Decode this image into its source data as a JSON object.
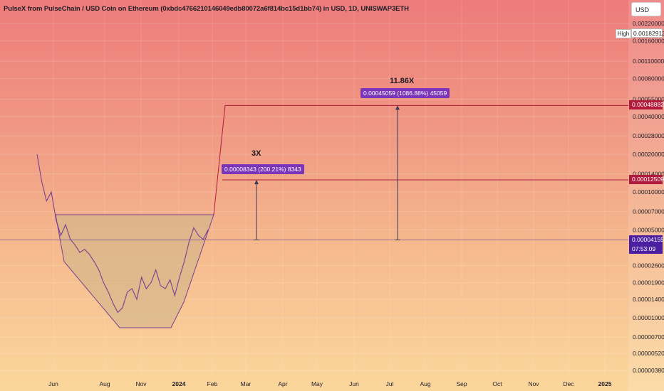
{
  "title": "PulseX from PulseChain / USD Coin on Ethereum (0xbdc4766210146049edb80072a6f814bc15d1bb74) in USD, 1D, UNISWAP3ETH",
  "currency": "USD",
  "high_label": "High",
  "high_value": "0.00182912",
  "colors": {
    "line": "#7a3f8f",
    "level": "#b01a3c",
    "current": "#4a1fa0",
    "box": "#7a35b8",
    "fill": "#d2b68a"
  },
  "chart_data": {
    "type": "line",
    "scale": "log",
    "x_ticks": [
      "Jun",
      "Aug",
      "Nov",
      "2024",
      "Feb",
      "Mar",
      "Apr",
      "May",
      "Jun",
      "Jul",
      "Aug",
      "Sep",
      "Oct",
      "Nov",
      "Dec",
      "2025"
    ],
    "y_ticks": [
      "0.00220000",
      "0.00160000",
      "0.00110000",
      "0.00080000",
      "0.00055000",
      "0.00040000",
      "0.00028000",
      "0.00020000",
      "0.00014000",
      "0.00010000",
      "0.00007000",
      "0.00005000",
      "0.00002600",
      "0.00001900",
      "0.00001400",
      "0.00001000",
      "0.00000700",
      "0.00000520",
      "0.00000380"
    ],
    "price_levels": [
      {
        "label": "0.00048882",
        "value": 0.00048882
      },
      {
        "label": "0.00012509",
        "value": 0.00012509
      }
    ],
    "current_price": {
      "label": "0.00004155",
      "value": 4.155e-05,
      "countdown": "07:53:09"
    },
    "annotations": [
      {
        "multiplier": "3X",
        "text": "0.00008343 (200.21%) 8343"
      },
      {
        "multiplier": "11.86X",
        "text": "0.00045059 (1086.88%) 45059"
      }
    ],
    "price_series": [
      0.0002,
      0.00012,
      8.5e-05,
      0.0001,
      6e-05,
      4.5e-05,
      5.5e-05,
      4.2e-05,
      3.8e-05,
      3.3e-05,
      3.5e-05,
      3.2e-05,
      2.8e-05,
      2.4e-05,
      1.9e-05,
      1.6e-05,
      1.3e-05,
      1.1e-05,
      1.2e-05,
      1.6e-05,
      1.7e-05,
      1.4e-05,
      2.1e-05,
      1.7e-05,
      1.9e-05,
      2.4e-05,
      1.8e-05,
      1.7e-05,
      2e-05,
      1.5e-05,
      2.1e-05,
      2.8e-05,
      4e-05,
      5.2e-05,
      4.5e-05,
      4.2e-05,
      5e-05
    ]
  }
}
